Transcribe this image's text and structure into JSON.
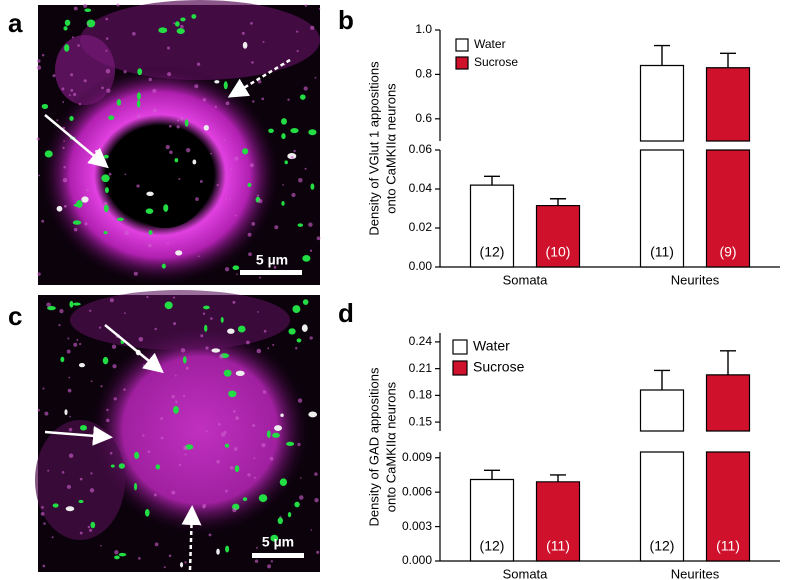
{
  "images": [
    {
      "letter": "a",
      "scale_bar": "5 µm"
    },
    {
      "letter": "c",
      "scale_bar": "5 µm"
    }
  ],
  "chart_data": [
    {
      "type": "bar",
      "letter": "b",
      "ylabel": [
        "Density of VGlut 1 appositions",
        "onto CaMKIIα neurons"
      ],
      "categories": [
        "Somata",
        "Neurites"
      ],
      "series": [
        {
          "name": "Water",
          "color": "#ffffff",
          "values": [
            0.042,
            0.84
          ],
          "errors": [
            0.0045,
            0.09
          ],
          "n": [
            "(12)",
            "(11)"
          ]
        },
        {
          "name": "Sucrose",
          "color": "#d0112b",
          "values": [
            0.0315,
            0.83
          ],
          "errors": [
            0.0035,
            0.065
          ],
          "n": [
            "(10)",
            "(9)"
          ]
        }
      ],
      "ylim_lower": [
        0,
        0.06
      ],
      "yticks_lower": [
        {
          "value": 0,
          "label": "0.00"
        },
        0.02,
        0.04,
        0.06
      ],
      "ylim_upper": [
        0.5,
        1.0
      ],
      "yticks_upper": [
        0.6,
        0.8,
        {
          "value": 1,
          "label": "1.0"
        }
      ],
      "legend": "upper left"
    },
    {
      "type": "bar",
      "letter": "d",
      "ylabel": [
        "Density of GAD appositions",
        "onto CaMKIIα neurons"
      ],
      "categories": [
        "Somata",
        "Neurites"
      ],
      "series": [
        {
          "name": "Water",
          "color": "#ffffff",
          "values": [
            0.0071,
            0.186
          ],
          "errors": [
            0.0008,
            0.022
          ],
          "n": [
            "(12)",
            "(12)"
          ]
        },
        {
          "name": "Sucrose",
          "color": "#d0112b",
          "values": [
            0.0069,
            0.203
          ],
          "errors": [
            0.0006,
            0.027
          ],
          "n": [
            "(11)",
            "(11)"
          ]
        }
      ],
      "ylim_lower": [
        0,
        0.0095
      ],
      "yticks_lower": [
        {
          "value": 0,
          "label": "0.000"
        },
        0.003,
        0.006,
        0.009
      ],
      "ylim_upper": [
        0.14,
        0.25
      ],
      "yticks_upper": [
        0.15,
        0.18,
        0.21,
        0.24
      ],
      "legend": "upper left"
    }
  ]
}
